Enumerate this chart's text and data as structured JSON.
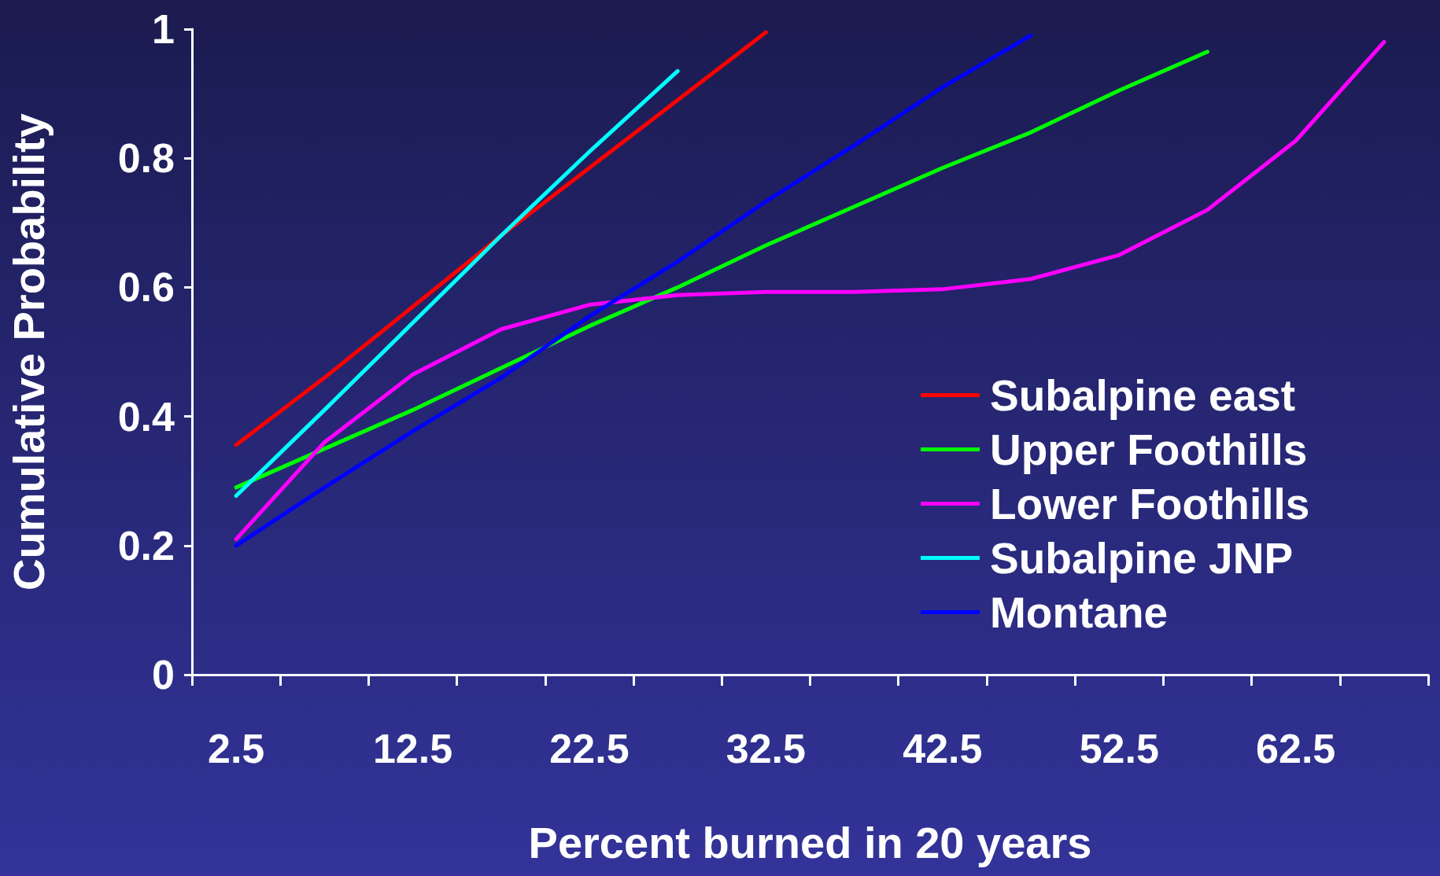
{
  "chart_data": {
    "type": "line",
    "xlabel": "Percent burned in 20 years",
    "ylabel": "Cumulative Probability",
    "categories": [
      "2.5",
      null,
      "12.5",
      null,
      "22.5",
      null,
      "32.5",
      null,
      "42.5",
      null,
      "52.5",
      null,
      "62.5",
      null
    ],
    "series": [
      {
        "name": "Subalpine east",
        "color": "#ff0000",
        "values": [
          0.356,
          0.46,
          0.57,
          0.68,
          0.785,
          0.89,
          0.995,
          null,
          null,
          null,
          null,
          null,
          null,
          null
        ]
      },
      {
        "name": "Upper Foothills",
        "color": "#00ff00",
        "values": [
          0.29,
          0.35,
          0.41,
          0.475,
          0.54,
          0.6,
          0.665,
          0.725,
          0.785,
          0.84,
          0.905,
          0.965,
          null,
          null
        ]
      },
      {
        "name": "Lower Foothills",
        "color": "#ff00ff",
        "values": [
          0.21,
          0.36,
          0.465,
          0.535,
          0.573,
          0.588,
          0.593,
          0.593,
          0.597,
          0.613,
          0.65,
          0.72,
          0.827,
          0.98
        ]
      },
      {
        "name": "Subalpine JNP",
        "color": "#00ffff",
        "values": [
          0.277,
          0.41,
          0.545,
          0.68,
          0.81,
          0.935,
          null,
          null,
          null,
          null,
          null,
          null,
          null,
          null
        ]
      },
      {
        "name": "Montane",
        "color": "#0000ff",
        "values": [
          0.2,
          0.29,
          0.377,
          0.46,
          0.555,
          0.64,
          0.733,
          0.82,
          0.91,
          0.99,
          null,
          null,
          null,
          null
        ]
      }
    ],
    "ylim": [
      0,
      1
    ],
    "yticks": [
      0,
      0.2,
      0.4,
      0.6,
      0.8,
      1
    ],
    "grid": false,
    "legend": "right",
    "marker": "none",
    "line_style": "solid"
  }
}
